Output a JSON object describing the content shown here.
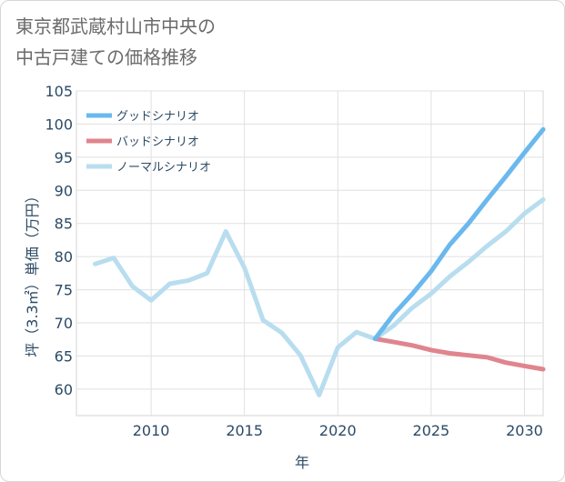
{
  "header": {
    "title_line1": "東京都武蔵村山市中央の",
    "title_line2": "中古戸建ての価格推移"
  },
  "chart_data": {
    "type": "line",
    "xlabel": "年",
    "ylabel": "坪（3.3㎡）単価（万円）",
    "xlim": [
      2006,
      2031
    ],
    "ylim": [
      56,
      105
    ],
    "xticks": [
      2010,
      2015,
      2020,
      2025,
      2030
    ],
    "yticks": [
      60,
      65,
      70,
      75,
      80,
      85,
      90,
      95,
      100,
      105
    ],
    "grid": true,
    "legend_position": "top-left",
    "series": [
      {
        "name": "グッドシナリオ",
        "color": "#6ab8ee",
        "x": [
          2022,
          2023,
          2024,
          2025,
          2026,
          2027,
          2028,
          2029,
          2030,
          2031
        ],
        "values": [
          67.6,
          71.3,
          74.4,
          77.8,
          81.8,
          85.0,
          88.6,
          92.1,
          95.7,
          99.2
        ]
      },
      {
        "name": "バッドシナリオ",
        "color": "#e0848e",
        "x": [
          2022,
          2023,
          2024,
          2025,
          2026,
          2027,
          2028,
          2029,
          2030,
          2031
        ],
        "values": [
          67.6,
          67.1,
          66.6,
          65.9,
          65.4,
          65.1,
          64.8,
          64.0,
          63.5,
          63.0
        ]
      },
      {
        "name": "ノーマルシナリオ",
        "color": "#b8ddef",
        "x": [
          2007,
          2008,
          2009,
          2010,
          2011,
          2012,
          2013,
          2014,
          2015,
          2016,
          2017,
          2018,
          2019,
          2020,
          2021,
          2022,
          2023,
          2024,
          2025,
          2026,
          2027,
          2028,
          2029,
          2030,
          2031
        ],
        "values": [
          78.9,
          79.8,
          75.5,
          73.4,
          75.9,
          76.4,
          77.5,
          83.8,
          78.3,
          70.4,
          68.5,
          65.1,
          59.1,
          66.3,
          68.6,
          67.6,
          69.6,
          72.3,
          74.4,
          77.0,
          79.2,
          81.6,
          83.8,
          86.5,
          88.6
        ]
      }
    ]
  }
}
